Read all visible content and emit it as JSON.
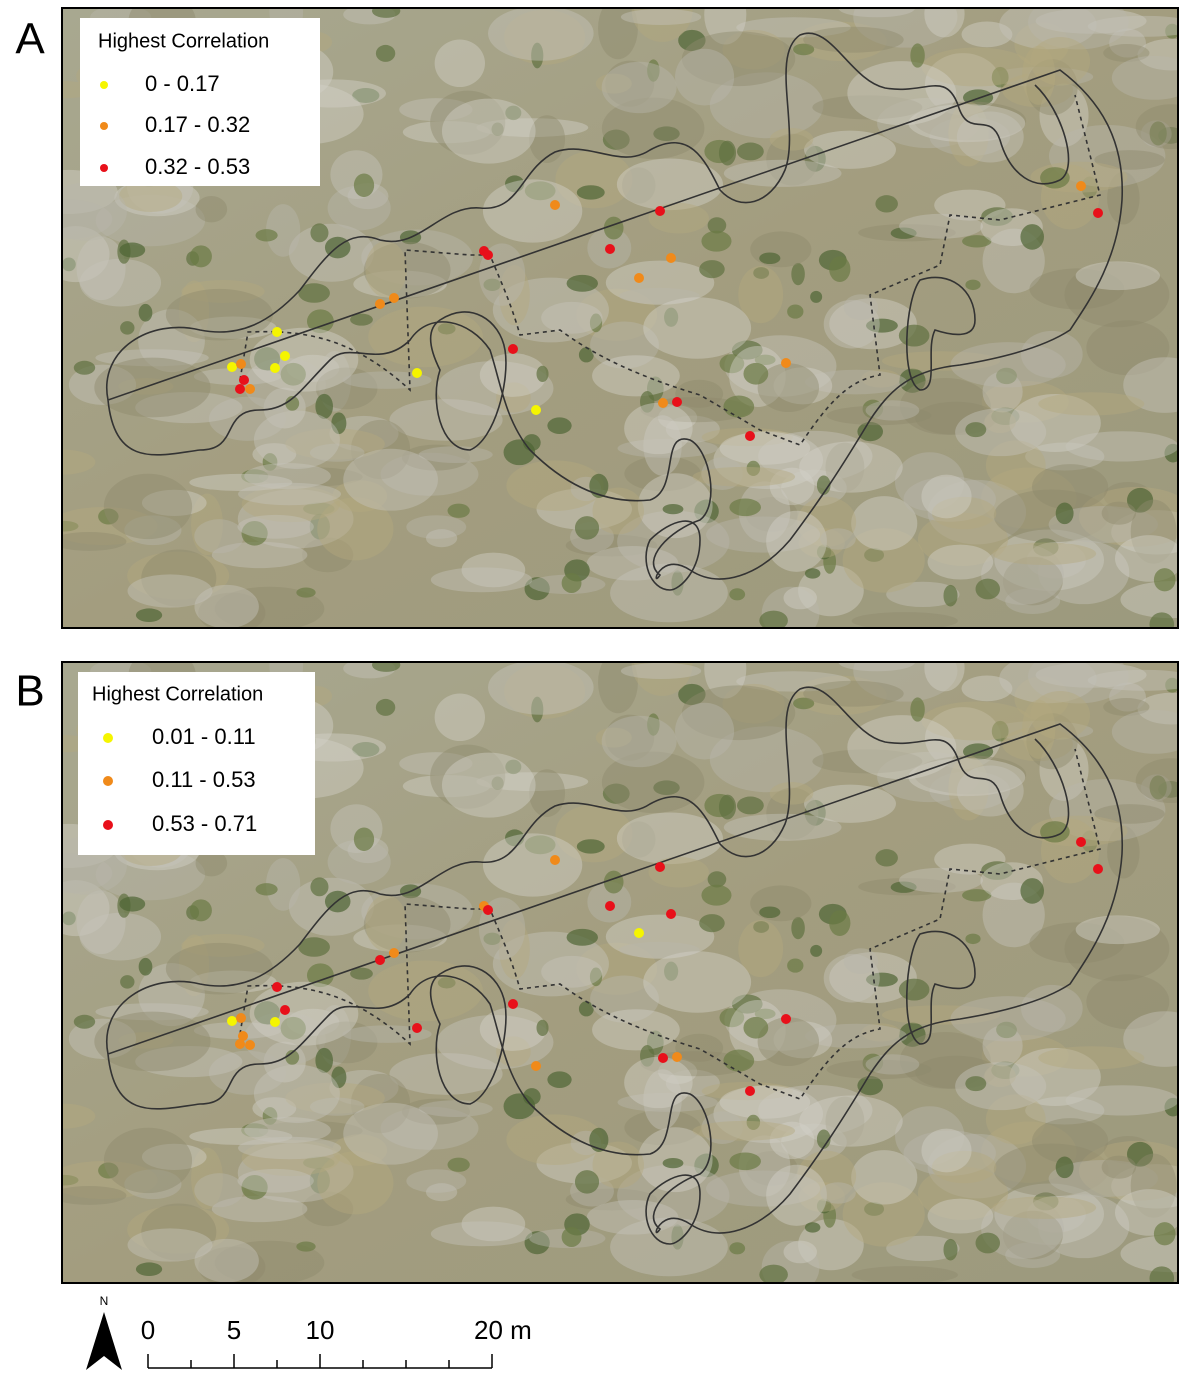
{
  "panels": [
    {
      "label": "A",
      "legend": {
        "title": "Highest Correlation",
        "items": [
          "0 - 0.17",
          "0.17 - 0.32",
          "0.32 - 0.53"
        ]
      }
    },
    {
      "label": "B",
      "legend": {
        "title": "Highest Correlation",
        "items": [
          "0.01 - 0.11",
          "0.11 - 0.53",
          "0.53 - 0.71"
        ]
      }
    }
  ],
  "scale_bar": {
    "north": "N",
    "labels": [
      "0",
      "5",
      "10",
      "20 m"
    ]
  }
}
